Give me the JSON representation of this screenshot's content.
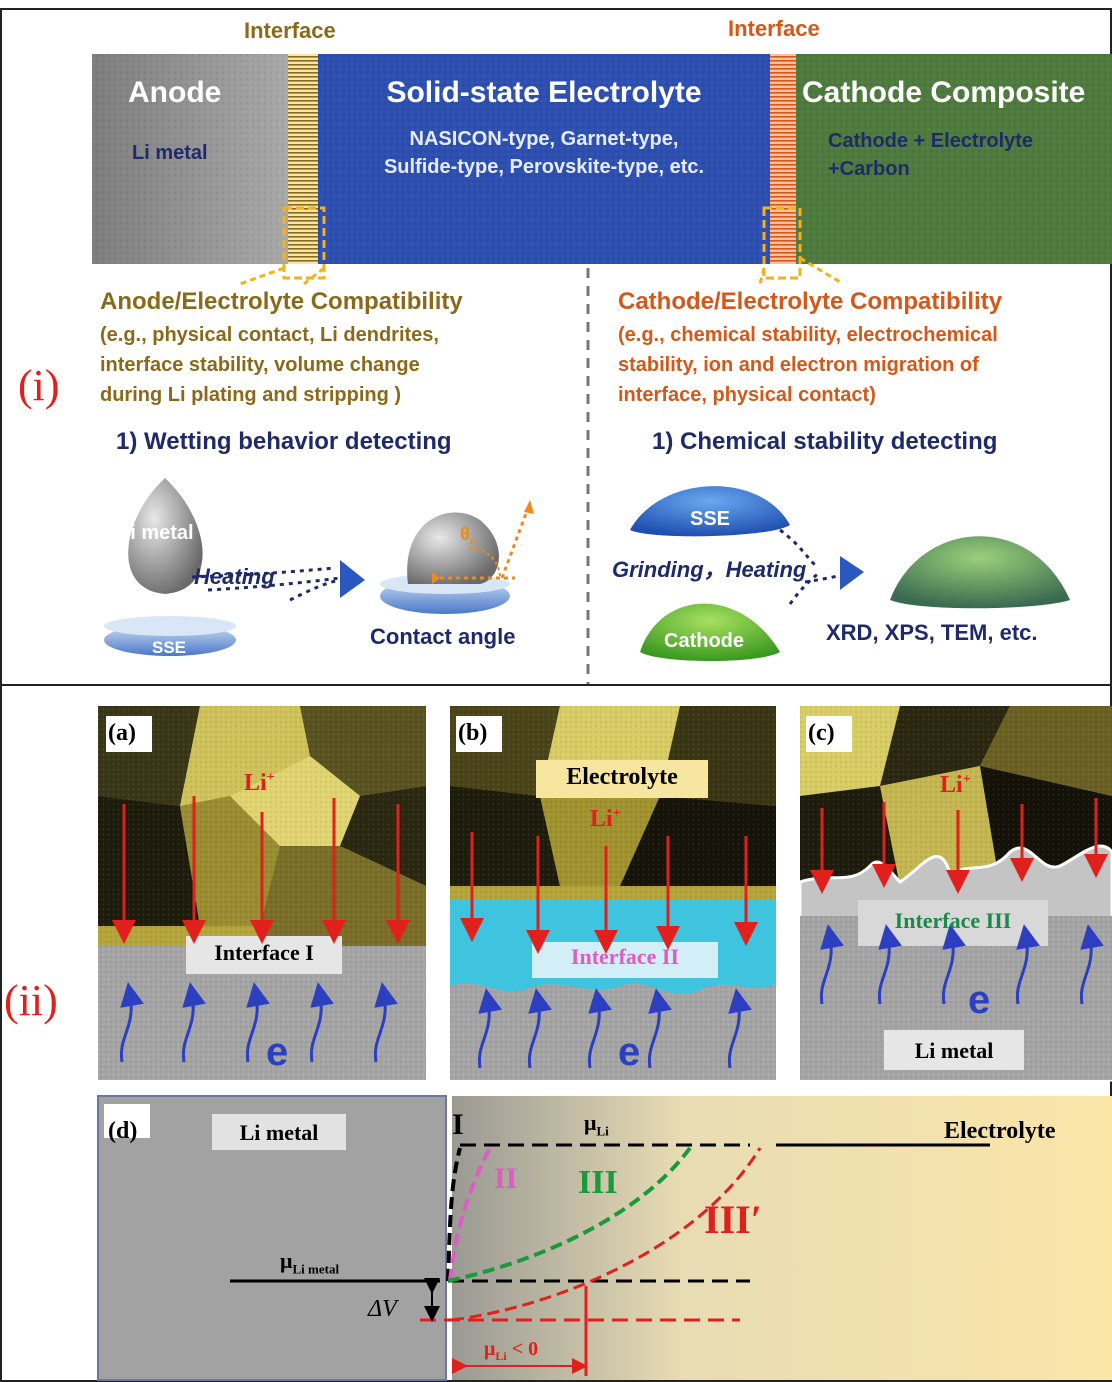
{
  "panel_i": {
    "roman": "(i)",
    "interface_left": "Interface",
    "interface_right": "Interface",
    "anode": {
      "title": "Anode",
      "sub": "Li metal"
    },
    "electrolyte": {
      "title": "Solid-state Electrolyte",
      "line1": "NASICON-type, Garnet-type,",
      "line2": "Sulfide-type, Perovskite-type, etc."
    },
    "cathode": {
      "title": "Cathode Composite",
      "line1": "Cathode + Electrolyte",
      "line2": "+Carbon"
    },
    "left": {
      "heading": "Anode/Electrolyte Compatibility",
      "lines": [
        "(e.g., physical contact, Li dendrites,",
        "interface stability, volume change",
        "during Li plating and stripping )"
      ],
      "method": "1) Wetting behavior detecting",
      "drop_label": "Li metal",
      "arrow_label": "Heating",
      "disc_label": "SSE",
      "angle_label": "θ",
      "angle_sub": "c",
      "result": "Contact angle"
    },
    "right": {
      "heading": "Cathode/Electrolyte Compatibility",
      "lines": [
        "(e.g., chemical stability, electrochemical",
        "stability, ion and electron migration of",
        "interface, physical contact)"
      ],
      "method": "1)  Chemical stability detecting",
      "sse_label": "SSE",
      "arrow_label": "Grinding，Heating",
      "cathode_label": "Cathode",
      "result": "XRD, XPS, TEM, etc."
    },
    "colors": {
      "interface_left": "#8a6a1a",
      "interface_right": "#d4581a",
      "heading_left": "#8a6a1a",
      "heading_right": "#d4581a",
      "method": "#1f2a6b",
      "electrolyte": "#2d4fb0",
      "cathode": "#4f7a3e",
      "anode": "#8e8e8e"
    }
  },
  "panel_ii": {
    "roman": "(ii)",
    "a": {
      "label": "(a)",
      "ion": "Li",
      "ion_sup": "+",
      "interface": "Interface I",
      "electron": "e"
    },
    "b": {
      "label": "(b)",
      "top": "Electrolyte",
      "ion": "Li",
      "ion_sup": "+",
      "interface": "Interface II",
      "electron": "e"
    },
    "c": {
      "label": "(c)",
      "ion": "Li",
      "ion_sup": "+",
      "interface": "Interface III",
      "electron": "e",
      "bottom": "Li metal"
    },
    "d": {
      "label": "(d)",
      "li_metal": "Li metal",
      "electrolyte": "Electrolyte",
      "mu": "μ",
      "mu_sub": "Li",
      "mu_metal_sub": "Li metal",
      "curve_I": "I",
      "curve_II": "II",
      "curve_III": "III",
      "curve_III_prime": "III′",
      "delta_v": "ΔV",
      "mu_lt": "< 0",
      "colors": {
        "II": "#e05bc4",
        "III": "#1a9a3a",
        "III_prime": "#e0201c"
      }
    }
  }
}
